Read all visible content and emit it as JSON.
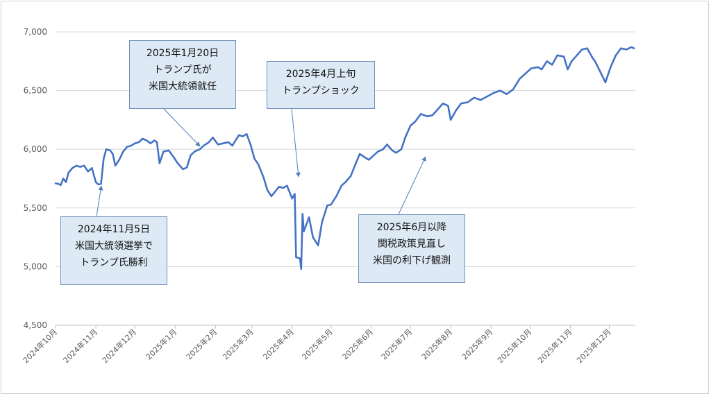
{
  "chart_data": {
    "type": "line",
    "title": "",
    "xlabel": "",
    "ylabel": "",
    "ylim": [
      4500,
      7000
    ],
    "y_ticks": [
      "4,500",
      "5,000",
      "5,500",
      "6,000",
      "6,500",
      "7,000"
    ],
    "x_tick_labels": [
      "2024年10月",
      "2024年11月",
      "2024年12月",
      "2025年1月",
      "2025年2月",
      "2025年3月",
      "2025年4月",
      "2025年5月",
      "2025年6月",
      "2025年7月",
      "2025年8月",
      "2025年9月",
      "2025年10月",
      "2025年11月",
      "2025年12月"
    ],
    "grid": "horizontal",
    "legend": "none",
    "series": [
      {
        "color": "#4472c4",
        "x": [
          "2024-10-01",
          "2024-10-03",
          "2024-10-05",
          "2024-10-07",
          "2024-10-09",
          "2024-10-11",
          "2024-10-14",
          "2024-10-17",
          "2024-10-20",
          "2024-10-23",
          "2024-10-26",
          "2024-10-29",
          "2024-11-01",
          "2024-11-03",
          "2024-11-05",
          "2024-11-07",
          "2024-11-09",
          "2024-11-12",
          "2024-11-14",
          "2024-11-16",
          "2024-11-19",
          "2024-11-22",
          "2024-11-25",
          "2024-11-28",
          "2024-12-01",
          "2024-12-04",
          "2024-12-07",
          "2024-12-10",
          "2024-12-13",
          "2024-12-16",
          "2024-12-18",
          "2024-12-20",
          "2024-12-23",
          "2024-12-27",
          "2024-12-31",
          "2025-01-03",
          "2025-01-07",
          "2025-01-10",
          "2025-01-13",
          "2025-01-16",
          "2025-01-20",
          "2025-01-23",
          "2025-01-27",
          "2025-01-30",
          "2025-02-03",
          "2025-02-07",
          "2025-02-11",
          "2025-02-14",
          "2025-02-19",
          "2025-02-22",
          "2025-02-25",
          "2025-02-28",
          "2025-03-03",
          "2025-03-06",
          "2025-03-10",
          "2025-03-13",
          "2025-03-16",
          "2025-03-19",
          "2025-03-22",
          "2025-03-25",
          "2025-03-28",
          "2025-04-01",
          "2025-04-03",
          "2025-04-04",
          "2025-04-07",
          "2025-04-08",
          "2025-04-09",
          "2025-04-10",
          "2025-04-14",
          "2025-04-17",
          "2025-04-21",
          "2025-04-24",
          "2025-04-28",
          "2025-05-01",
          "2025-05-05",
          "2025-05-09",
          "2025-05-12",
          "2025-05-16",
          "2025-05-20",
          "2025-05-23",
          "2025-05-27",
          "2025-05-30",
          "2025-06-03",
          "2025-06-06",
          "2025-06-10",
          "2025-06-13",
          "2025-06-17",
          "2025-06-20",
          "2025-06-24",
          "2025-06-27",
          "2025-07-01",
          "2025-07-05",
          "2025-07-09",
          "2025-07-14",
          "2025-07-18",
          "2025-07-22",
          "2025-07-26",
          "2025-07-30",
          "2025-08-01",
          "2025-08-05",
          "2025-08-09",
          "2025-08-14",
          "2025-08-19",
          "2025-08-24",
          "2025-08-29",
          "2025-09-03",
          "2025-09-08",
          "2025-09-13",
          "2025-09-18",
          "2025-09-23",
          "2025-09-28",
          "2025-10-02",
          "2025-10-07",
          "2025-10-10",
          "2025-10-14",
          "2025-10-18",
          "2025-10-22",
          "2025-10-27",
          "2025-10-30",
          "2025-11-02",
          "2025-11-06",
          "2025-11-10",
          "2025-11-14",
          "2025-11-18",
          "2025-11-20",
          "2025-11-24",
          "2025-11-28",
          "2025-12-02",
          "2025-12-06",
          "2025-12-10",
          "2025-12-14",
          "2025-12-18",
          "2025-12-20"
        ],
        "values": [
          5710,
          5705,
          5695,
          5750,
          5720,
          5800,
          5840,
          5860,
          5850,
          5860,
          5810,
          5840,
          5720,
          5700,
          5705,
          5920,
          6000,
          5990,
          5960,
          5860,
          5910,
          5980,
          6020,
          6030,
          6050,
          6060,
          6090,
          6075,
          6050,
          6075,
          6060,
          5880,
          5980,
          5990,
          5930,
          5880,
          5830,
          5845,
          5950,
          5980,
          6000,
          6030,
          6060,
          6100,
          6040,
          6050,
          6060,
          6030,
          6120,
          6110,
          6130,
          6040,
          5920,
          5870,
          5760,
          5650,
          5600,
          5640,
          5680,
          5670,
          5690,
          5580,
          5620,
          5080,
          5070,
          4980,
          5450,
          5300,
          5420,
          5250,
          5180,
          5380,
          5520,
          5530,
          5600,
          5690,
          5720,
          5770,
          5880,
          5960,
          5930,
          5910,
          5950,
          5980,
          6000,
          6040,
          5990,
          5970,
          6000,
          6100,
          6200,
          6240,
          6300,
          6280,
          6290,
          6340,
          6390,
          6370,
          6250,
          6330,
          6390,
          6400,
          6440,
          6420,
          6450,
          6480,
          6500,
          6470,
          6510,
          6600,
          6650,
          6690,
          6700,
          6680,
          6750,
          6720,
          6800,
          6790,
          6680,
          6750,
          6800,
          6850,
          6860,
          6780,
          6750,
          6660,
          6570,
          6700,
          6800,
          6860,
          6850,
          6870,
          6860
        ]
      }
    ]
  },
  "annotations": [
    {
      "line1": "2025年1月20日",
      "line2": "トランプ氏が",
      "line3": "米国大統領就任"
    },
    {
      "line1": "2025年4月上旬",
      "line2": "トランプショック",
      "line3": ""
    },
    {
      "line1": "2024年11月5日",
      "line2": "米国大統領選挙で",
      "line3": "トランプ氏勝利"
    },
    {
      "line1": "2025年6月以降",
      "line2": "関税政策見直し",
      "line3": "米国の利下げ観測"
    }
  ]
}
